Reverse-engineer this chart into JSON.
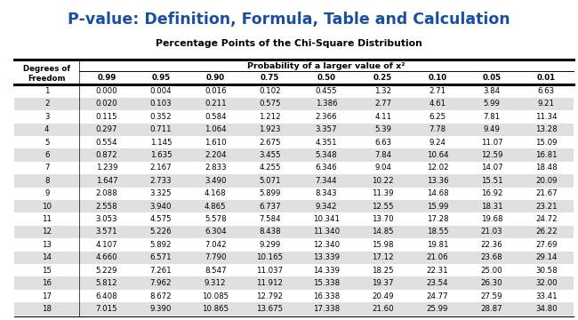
{
  "title": "P-value: Definition, Formula, Table and Calculation",
  "subtitle": "Percentage Points of the Chi-Square Distribution",
  "prob_cols": [
    "0.99",
    "0.95",
    "0.90",
    "0.75",
    "0.50",
    "0.25",
    "0.10",
    "0.05",
    "0.01"
  ],
  "rows": [
    [
      1,
      "0.000",
      "0.004",
      "0.016",
      "0.102",
      "0.455",
      "1.32",
      "2.71",
      "3.84",
      "6.63"
    ],
    [
      2,
      "0.020",
      "0.103",
      "0.211",
      "0.575",
      "1.386",
      "2.77",
      "4.61",
      "5.99",
      "9.21"
    ],
    [
      3,
      "0.115",
      "0.352",
      "0.584",
      "1.212",
      "2.366",
      "4.11",
      "6.25",
      "7.81",
      "11.34"
    ],
    [
      4,
      "0.297",
      "0.711",
      "1.064",
      "1.923",
      "3.357",
      "5.39",
      "7.78",
      "9.49",
      "13.28"
    ],
    [
      5,
      "0.554",
      "1.145",
      "1.610",
      "2.675",
      "4.351",
      "6.63",
      "9.24",
      "11.07",
      "15.09"
    ],
    [
      6,
      "0.872",
      "1.635",
      "2.204",
      "3.455",
      "5.348",
      "7.84",
      "10.64",
      "12.59",
      "16.81"
    ],
    [
      7,
      "1.239",
      "2.167",
      "2.833",
      "4.255",
      "6.346",
      "9.04",
      "12.02",
      "14.07",
      "18.48"
    ],
    [
      8,
      "1.647",
      "2.733",
      "3.490",
      "5.071",
      "7.344",
      "10.22",
      "13.36",
      "15.51",
      "20.09"
    ],
    [
      9,
      "2.088",
      "3.325",
      "4.168",
      "5.899",
      "8.343",
      "11.39",
      "14.68",
      "16.92",
      "21.67"
    ],
    [
      10,
      "2.558",
      "3.940",
      "4.865",
      "6.737",
      "9.342",
      "12.55",
      "15.99",
      "18.31",
      "23.21"
    ],
    [
      11,
      "3.053",
      "4.575",
      "5.578",
      "7.584",
      "10.341",
      "13.70",
      "17.28",
      "19.68",
      "24.72"
    ],
    [
      12,
      "3.571",
      "5.226",
      "6.304",
      "8.438",
      "11.340",
      "14.85",
      "18.55",
      "21.03",
      "26.22"
    ],
    [
      13,
      "4.107",
      "5.892",
      "7.042",
      "9.299",
      "12.340",
      "15.98",
      "19.81",
      "22.36",
      "27.69"
    ],
    [
      14,
      "4.660",
      "6.571",
      "7.790",
      "10.165",
      "13.339",
      "17.12",
      "21.06",
      "23.68",
      "29.14"
    ],
    [
      15,
      "5.229",
      "7.261",
      "8.547",
      "11.037",
      "14.339",
      "18.25",
      "22.31",
      "25.00",
      "30.58"
    ],
    [
      16,
      "5.812",
      "7.962",
      "9.312",
      "11.912",
      "15.338",
      "19.37",
      "23.54",
      "26.30",
      "32.00"
    ],
    [
      17,
      "6.408",
      "8.672",
      "10.085",
      "12.792",
      "16.338",
      "20.49",
      "24.77",
      "27.59",
      "33.41"
    ],
    [
      18,
      "7.015",
      "9.390",
      "10.865",
      "13.675",
      "17.338",
      "21.60",
      "25.99",
      "28.87",
      "34.80"
    ]
  ],
  "title_color": "#1a4fa0",
  "alt_row_color": "#e0e0e0",
  "text_color": "#000000",
  "fig_width": 6.5,
  "fig_height": 3.6,
  "dpi": 100
}
